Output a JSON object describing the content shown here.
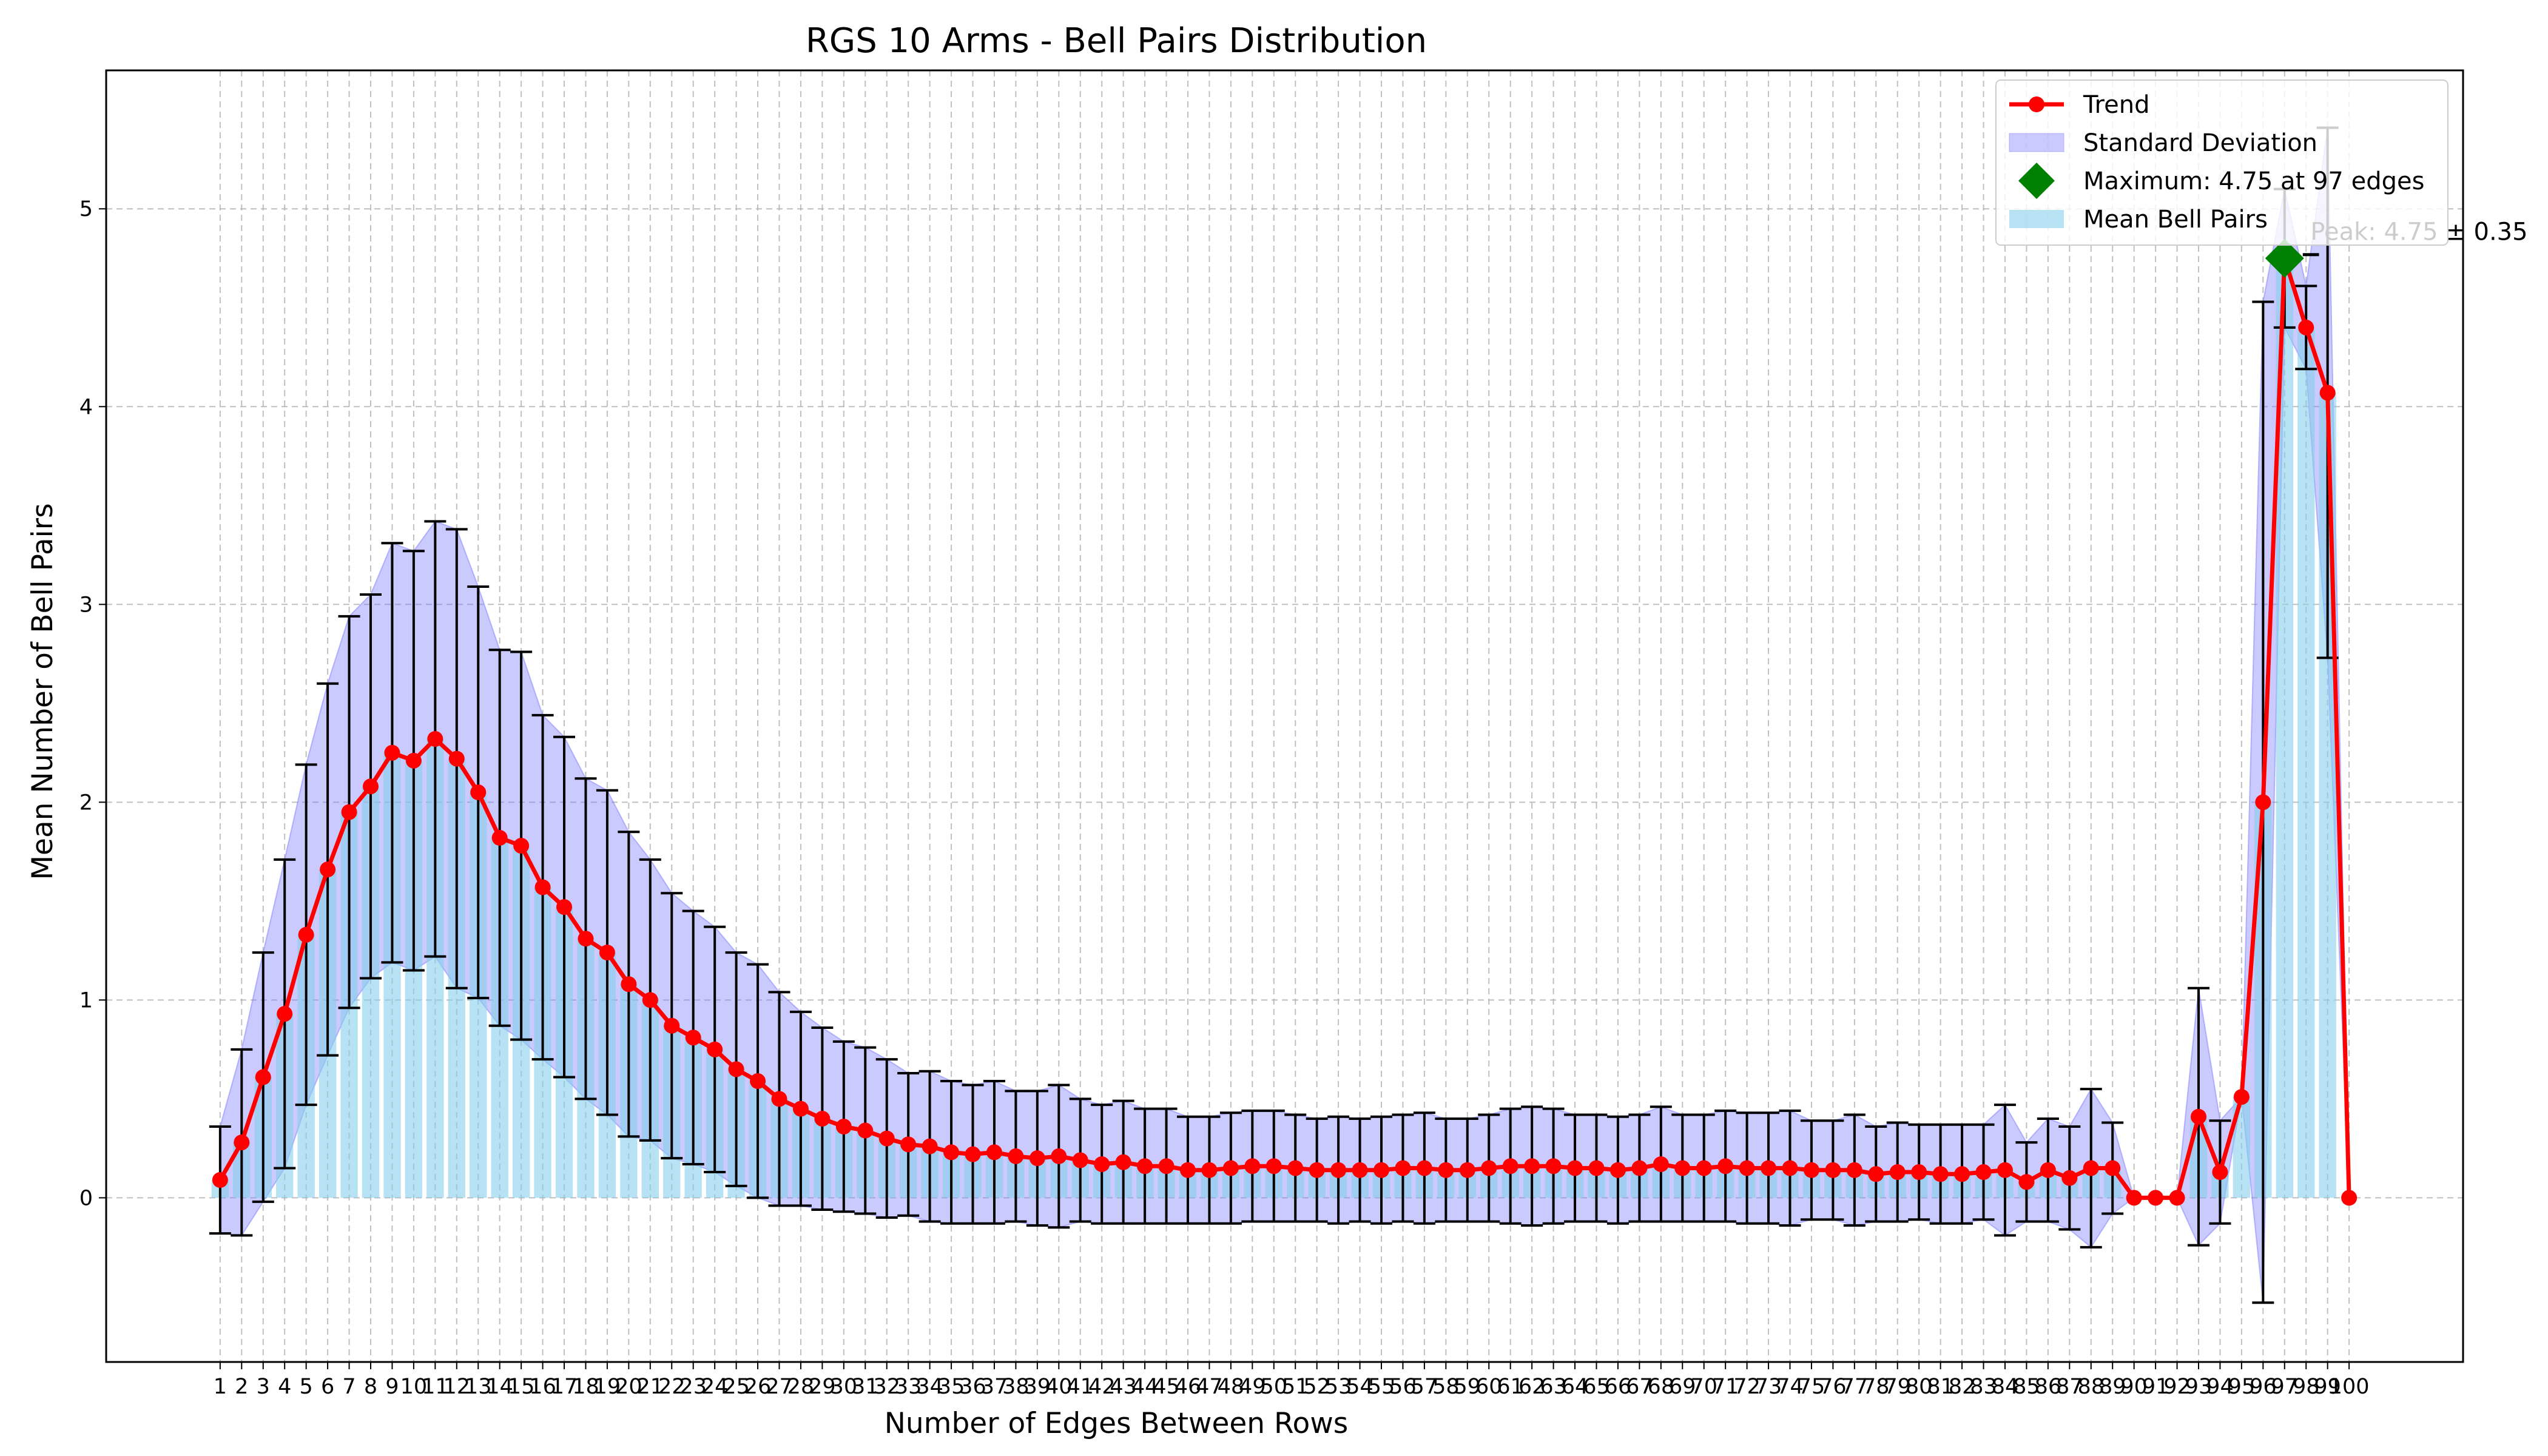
{
  "chart_data": {
    "type": "bar",
    "title": "RGS 10 Arms - Bell Pairs Distribution",
    "xlabel": "Number of Edges Between Rows",
    "ylabel": "Mean Number of Bell Pairs",
    "ylim": [
      -0.83,
      5.7
    ],
    "yticks": [
      0,
      1,
      2,
      3,
      4,
      5
    ],
    "grid": true,
    "legend_placement": "top-right",
    "x": [
      1,
      2,
      3,
      4,
      5,
      6,
      7,
      8,
      9,
      10,
      11,
      12,
      13,
      14,
      15,
      16,
      17,
      18,
      19,
      20,
      21,
      22,
      23,
      24,
      25,
      26,
      27,
      28,
      29,
      30,
      31,
      32,
      33,
      34,
      35,
      36,
      37,
      38,
      39,
      40,
      41,
      42,
      43,
      44,
      45,
      46,
      47,
      48,
      49,
      50,
      51,
      52,
      53,
      54,
      55,
      56,
      57,
      58,
      59,
      60,
      61,
      62,
      63,
      64,
      65,
      66,
      67,
      68,
      69,
      70,
      71,
      72,
      73,
      74,
      75,
      76,
      77,
      78,
      79,
      80,
      81,
      82,
      83,
      84,
      85,
      86,
      87,
      88,
      89,
      90,
      91,
      92,
      93,
      94,
      95,
      96,
      97,
      98,
      99,
      100
    ],
    "series": [
      {
        "name": "Mean Bell Pairs",
        "values": [
          0.09,
          0.28,
          0.61,
          0.93,
          1.33,
          1.66,
          1.95,
          2.08,
          2.25,
          2.21,
          2.32,
          2.22,
          2.05,
          1.82,
          1.78,
          1.57,
          1.47,
          1.31,
          1.24,
          1.08,
          1.0,
          0.87,
          0.81,
          0.75,
          0.65,
          0.59,
          0.5,
          0.45,
          0.4,
          0.36,
          0.34,
          0.3,
          0.27,
          0.26,
          0.23,
          0.22,
          0.23,
          0.21,
          0.2,
          0.21,
          0.19,
          0.17,
          0.18,
          0.16,
          0.16,
          0.14,
          0.14,
          0.15,
          0.16,
          0.16,
          0.15,
          0.14,
          0.14,
          0.14,
          0.14,
          0.15,
          0.15,
          0.14,
          0.14,
          0.15,
          0.16,
          0.16,
          0.16,
          0.15,
          0.15,
          0.14,
          0.15,
          0.17,
          0.15,
          0.15,
          0.16,
          0.15,
          0.15,
          0.15,
          0.14,
          0.14,
          0.14,
          0.12,
          0.13,
          0.13,
          0.12,
          0.12,
          0.13,
          0.14,
          0.08,
          0.14,
          0.1,
          0.15,
          0.15,
          0.0,
          0.0,
          0.0,
          0.41,
          0.13,
          0.51,
          2.0,
          4.75,
          4.4,
          4.07,
          0.0
        ]
      },
      {
        "name": "Standard Deviation",
        "values": [
          0.27,
          0.47,
          0.63,
          0.78,
          0.86,
          0.94,
          0.99,
          0.97,
          1.06,
          1.06,
          1.1,
          1.16,
          1.04,
          0.95,
          0.98,
          0.87,
          0.86,
          0.81,
          0.82,
          0.77,
          0.71,
          0.67,
          0.64,
          0.62,
          0.59,
          0.59,
          0.54,
          0.49,
          0.46,
          0.43,
          0.42,
          0.4,
          0.36,
          0.38,
          0.36,
          0.35,
          0.36,
          0.33,
          0.34,
          0.36,
          0.31,
          0.3,
          0.31,
          0.29,
          0.29,
          0.27,
          0.27,
          0.28,
          0.28,
          0.28,
          0.27,
          0.26,
          0.27,
          0.26,
          0.27,
          0.27,
          0.28,
          0.26,
          0.26,
          0.27,
          0.29,
          0.3,
          0.29,
          0.27,
          0.27,
          0.27,
          0.27,
          0.29,
          0.27,
          0.27,
          0.28,
          0.28,
          0.28,
          0.29,
          0.25,
          0.25,
          0.28,
          0.24,
          0.25,
          0.24,
          0.25,
          0.25,
          0.24,
          0.33,
          0.2,
          0.26,
          0.26,
          0.4,
          0.23,
          0.0,
          0.0,
          0.0,
          0.65,
          0.26,
          0.0,
          2.53,
          0.35,
          0.21,
          1.34,
          0.0
        ]
      }
    ],
    "trend": {
      "name": "Trend",
      "color": "#ff0000"
    },
    "maximum": {
      "label": "Maximum: 4.75 at 97 edges",
      "x": 97,
      "y": 4.75,
      "color": "#008000"
    },
    "annotation": "Peak: 4.75 ± 0.35",
    "colors": {
      "bars": "#87ceeb",
      "std_fill": "#7b7bff",
      "errorbar": "#000000",
      "trend": "#ff0000",
      "max_marker": "#008000"
    },
    "legend": [
      {
        "label": "Trend",
        "kind": "line"
      },
      {
        "label": "Standard Deviation",
        "kind": "std"
      },
      {
        "label": "Maximum: 4.75 at 97 edges",
        "kind": "diamond"
      },
      {
        "label": "Mean Bell Pairs",
        "kind": "bar"
      }
    ]
  }
}
